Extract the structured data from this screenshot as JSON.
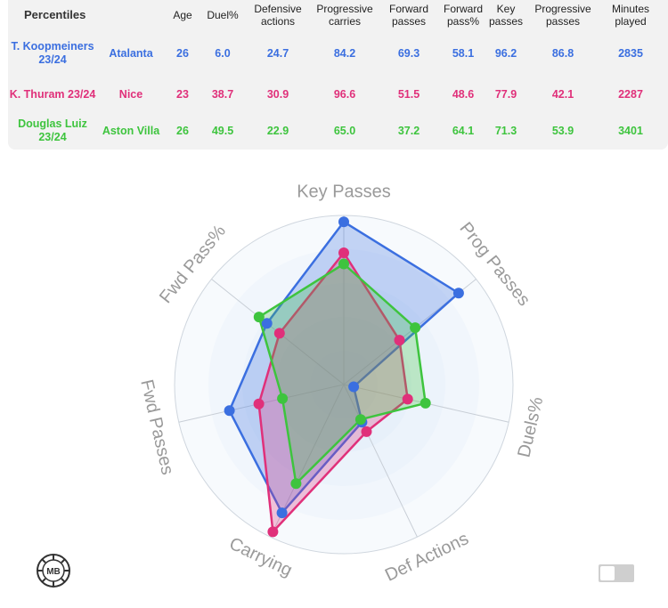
{
  "table": {
    "headers": [
      "Percentiles",
      "Age",
      "Duel%",
      "Defensive actions",
      "Progressive carries",
      "Forward passes",
      "Forward pass%",
      "Key passes",
      "Progressive passes",
      "Minutes played"
    ],
    "rows": [
      {
        "player": "T. Koopmeiners 23/24",
        "team": "Atalanta",
        "values": [
          "26",
          "6.0",
          "24.7",
          "84.2",
          "69.3",
          "58.1",
          "96.2",
          "86.8",
          "2835"
        ],
        "color": "#3b6fe0"
      },
      {
        "player": "K. Thuram 23/24",
        "team": "Nice",
        "values": [
          "23",
          "38.7",
          "30.9",
          "96.6",
          "51.5",
          "48.6",
          "77.9",
          "42.1",
          "2287"
        ],
        "color": "#e0307a"
      },
      {
        "player": "Douglas Luiz 23/24",
        "team": "Aston Villa",
        "values": [
          "26",
          "49.5",
          "22.9",
          "65.0",
          "37.2",
          "64.1",
          "71.3",
          "53.9",
          "3401"
        ],
        "color": "#3ec43e"
      }
    ]
  },
  "chart_data": {
    "type": "radar",
    "axes": [
      "Key Passes",
      "Prog Passes",
      "Duels%",
      "Def Actions",
      "Carrying",
      "Fwd Passes",
      "Fwd Pass%"
    ],
    "range": [
      0,
      100
    ],
    "grid": true,
    "series": [
      {
        "name": "T. Koopmeiners 23/24",
        "color": "#3b6fe0",
        "values": [
          96.2,
          86.8,
          6.0,
          24.7,
          84.2,
          69.3,
          58.1
        ]
      },
      {
        "name": "K. Thuram 23/24",
        "color": "#e0307a",
        "values": [
          77.9,
          42.1,
          38.7,
          30.9,
          96.6,
          51.5,
          48.6
        ]
      },
      {
        "name": "Douglas Luiz 23/24",
        "color": "#3ec43e",
        "values": [
          71.3,
          53.9,
          49.5,
          22.9,
          65.0,
          37.2,
          64.1
        ]
      }
    ]
  },
  "logo": {
    "text": "MB"
  }
}
